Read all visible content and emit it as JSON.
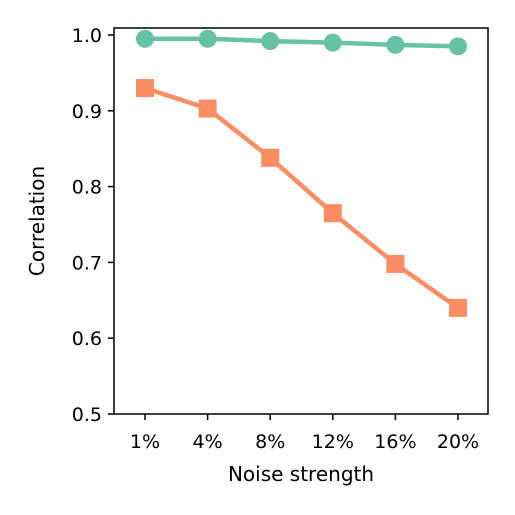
{
  "chart_data": {
    "type": "line",
    "categories": [
      "1%",
      "4%",
      "8%",
      "12%",
      "16%",
      "20%"
    ],
    "xlabel": "Noise strength",
    "ylabel": "Correlation",
    "ylim": [
      0.5,
      1.0
    ],
    "yticks": [
      "0.5",
      "0.6",
      "0.7",
      "0.8",
      "0.9",
      "1.0"
    ],
    "grid": false,
    "legend": "none",
    "series": [
      {
        "values": [
          0.995,
          0.995,
          0.992,
          0.99,
          0.987,
          0.985
        ],
        "color": "#66c2a5",
        "marker": "circle"
      },
      {
        "values": [
          0.93,
          0.903,
          0.838,
          0.765,
          0.698,
          0.64
        ],
        "color": "#fc8d62",
        "marker": "square"
      }
    ]
  }
}
